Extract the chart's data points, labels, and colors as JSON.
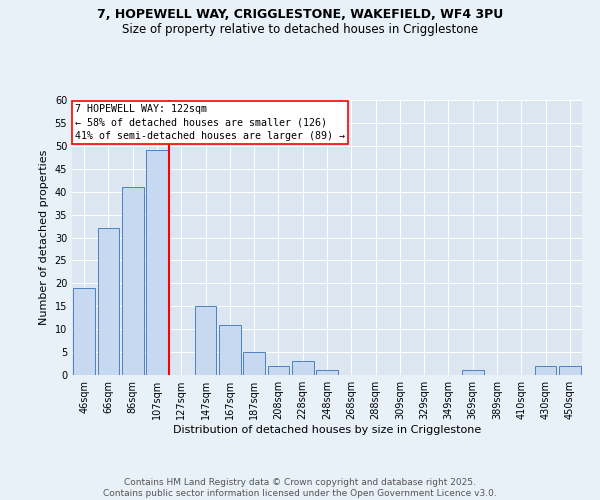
{
  "title_line1": "7, HOPEWELL WAY, CRIGGLESTONE, WAKEFIELD, WF4 3PU",
  "title_line2": "Size of property relative to detached houses in Crigglestone",
  "xlabel": "Distribution of detached houses by size in Crigglestone",
  "ylabel": "Number of detached properties",
  "bar_labels": [
    "46sqm",
    "66sqm",
    "86sqm",
    "107sqm",
    "127sqm",
    "147sqm",
    "167sqm",
    "187sqm",
    "208sqm",
    "228sqm",
    "248sqm",
    "268sqm",
    "288sqm",
    "309sqm",
    "329sqm",
    "349sqm",
    "369sqm",
    "389sqm",
    "410sqm",
    "430sqm",
    "450sqm"
  ],
  "bar_values": [
    19,
    32,
    41,
    49,
    0,
    15,
    11,
    5,
    2,
    3,
    1,
    0,
    0,
    0,
    0,
    0,
    1,
    0,
    0,
    2,
    2
  ],
  "bar_color": "#c6d9f0",
  "bar_edge_color": "#4f81bd",
  "red_line_index": 4,
  "annotation_title": "7 HOPEWELL WAY: 122sqm",
  "annotation_line1": "← 58% of detached houses are smaller (126)",
  "annotation_line2": "41% of semi-detached houses are larger (89) →",
  "ylim": [
    0,
    60
  ],
  "yticks": [
    0,
    5,
    10,
    15,
    20,
    25,
    30,
    35,
    40,
    45,
    50,
    55,
    60
  ],
  "footer_line1": "Contains HM Land Registry data © Crown copyright and database right 2025.",
  "footer_line2": "Contains public sector information licensed under the Open Government Licence v3.0.",
  "background_color": "#e8f0f8",
  "plot_bg_color": "#dce6f1",
  "title_fontsize": 9,
  "subtitle_fontsize": 8.5,
  "axis_label_fontsize": 8,
  "tick_fontsize": 7,
  "footer_fontsize": 6.5
}
